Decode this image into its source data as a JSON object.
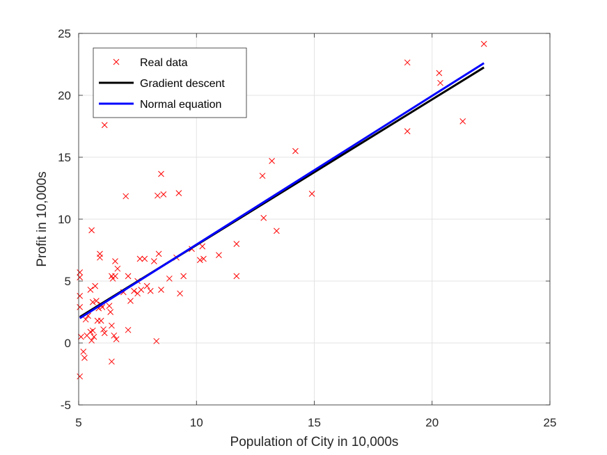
{
  "chart_data": {
    "type": "scatter",
    "xlabel": "Population of City in 10,000s",
    "ylabel": "Profit in 10,000s",
    "xlim": [
      5,
      25
    ],
    "ylim": [
      -5,
      25
    ],
    "xticks": [
      5,
      10,
      15,
      20,
      25
    ],
    "yticks": [
      -5,
      0,
      5,
      10,
      15,
      20,
      25
    ],
    "grid": true,
    "legend_position": "top-left",
    "legend": [
      "Real data",
      "Gradient descent",
      "Normal equation"
    ],
    "colors": {
      "real_data": "#ff0000",
      "gradient_descent": "#000000",
      "normal_equation": "#0000ff"
    },
    "series": [
      {
        "name": "Real data",
        "kind": "scatter",
        "marker": "x",
        "points": [
          [
            5.05,
            5.7
          ],
          [
            5.05,
            5.3
          ],
          [
            5.05,
            3.8
          ],
          [
            5.05,
            2.9
          ],
          [
            5.05,
            -2.7
          ],
          [
            5.1,
            0.5
          ],
          [
            5.2,
            -0.7
          ],
          [
            5.25,
            -1.2
          ],
          [
            5.3,
            1.9
          ],
          [
            5.35,
            0.6
          ],
          [
            5.4,
            2.2
          ],
          [
            5.5,
            4.3
          ],
          [
            5.55,
            9.1
          ],
          [
            5.5,
            0.9
          ],
          [
            5.55,
            0.2
          ],
          [
            5.6,
            1.0
          ],
          [
            5.6,
            3.3
          ],
          [
            5.65,
            0.5
          ],
          [
            5.7,
            4.6
          ],
          [
            5.75,
            3.4
          ],
          [
            5.8,
            1.8
          ],
          [
            5.85,
            2.8
          ],
          [
            5.9,
            7.2
          ],
          [
            5.9,
            6.9
          ],
          [
            5.95,
            1.8
          ],
          [
            5.95,
            3.1
          ],
          [
            6.0,
            2.9
          ],
          [
            6.05,
            1.1
          ],
          [
            6.1,
            0.8
          ],
          [
            6.1,
            17.6
          ],
          [
            6.3,
            3.0
          ],
          [
            6.35,
            2.5
          ],
          [
            6.4,
            5.4
          ],
          [
            6.4,
            1.4
          ],
          [
            6.4,
            -1.5
          ],
          [
            6.45,
            5.2
          ],
          [
            6.5,
            0.6
          ],
          [
            6.55,
            5.4
          ],
          [
            6.55,
            6.6
          ],
          [
            6.6,
            0.3
          ],
          [
            6.65,
            6.0
          ],
          [
            6.9,
            4.1
          ],
          [
            7.0,
            11.85
          ],
          [
            7.1,
            5.4
          ],
          [
            7.1,
            1.05
          ],
          [
            7.2,
            3.4
          ],
          [
            7.35,
            4.2
          ],
          [
            7.5,
            5.0
          ],
          [
            7.5,
            4.0
          ],
          [
            7.6,
            6.8
          ],
          [
            7.65,
            4.3
          ],
          [
            7.8,
            6.8
          ],
          [
            7.9,
            4.6
          ],
          [
            8.05,
            4.2
          ],
          [
            8.2,
            6.6
          ],
          [
            8.3,
            0.15
          ],
          [
            8.35,
            11.9
          ],
          [
            8.4,
            7.2
          ],
          [
            8.5,
            13.65
          ],
          [
            8.5,
            4.3
          ],
          [
            8.6,
            12.0
          ],
          [
            8.85,
            5.2
          ],
          [
            9.15,
            6.9
          ],
          [
            9.25,
            12.1
          ],
          [
            9.3,
            4.0
          ],
          [
            9.45,
            5.4
          ],
          [
            9.8,
            7.6
          ],
          [
            10.15,
            6.7
          ],
          [
            10.25,
            7.8
          ],
          [
            10.3,
            6.8
          ],
          [
            10.95,
            7.1
          ],
          [
            11.7,
            8.0
          ],
          [
            11.7,
            5.4
          ],
          [
            12.8,
            13.5
          ],
          [
            12.85,
            10.1
          ],
          [
            13.2,
            14.7
          ],
          [
            13.4,
            9.05
          ],
          [
            14.2,
            15.5
          ],
          [
            14.9,
            12.05
          ],
          [
            18.95,
            22.65
          ],
          [
            18.95,
            17.1
          ],
          [
            20.3,
            21.8
          ],
          [
            20.35,
            21.0
          ],
          [
            21.3,
            17.9
          ],
          [
            22.2,
            24.15
          ]
        ]
      },
      {
        "name": "Gradient descent",
        "kind": "line",
        "points": [
          [
            5.05,
            2.1
          ],
          [
            22.2,
            22.25
          ]
        ]
      },
      {
        "name": "Normal equation",
        "kind": "line",
        "points": [
          [
            5.05,
            2.0
          ],
          [
            22.2,
            22.6
          ]
        ]
      }
    ]
  }
}
